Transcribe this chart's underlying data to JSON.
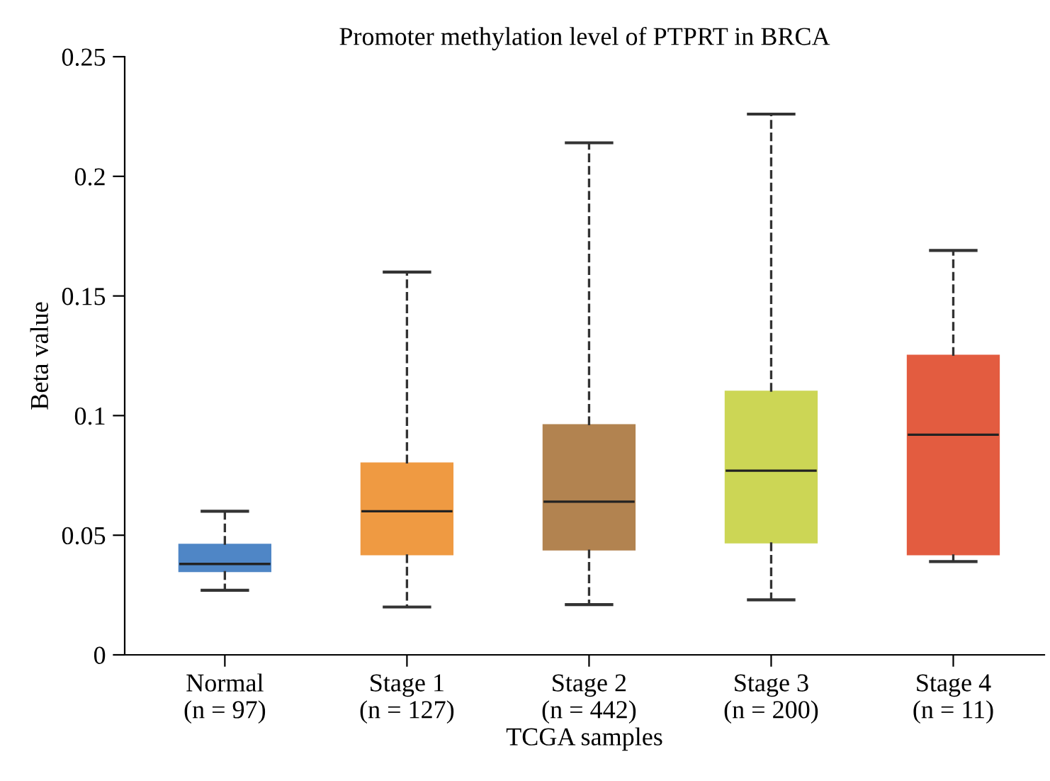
{
  "chart_data": {
    "type": "box",
    "title": "Promoter methylation level of PTPRT in BRCA",
    "xlabel": "TCGA samples",
    "ylabel": "Beta value",
    "categories": [
      "Normal\n(n = 97)",
      "Stage 1\n(n = 127)",
      "Stage 2\n(n = 442)",
      "Stage 3\n(n = 200)",
      "Stage 4\n(n = 11)"
    ],
    "colors": [
      "#4f86c6",
      "#ef9a42",
      "#b28350",
      "#ccd655",
      "#e35c40"
    ],
    "boxes": [
      {
        "low": 0.027,
        "q1": 0.035,
        "median": 0.038,
        "q3": 0.046,
        "high": 0.06
      },
      {
        "low": 0.02,
        "q1": 0.042,
        "median": 0.06,
        "q3": 0.08,
        "high": 0.16
      },
      {
        "low": 0.021,
        "q1": 0.044,
        "median": 0.064,
        "q3": 0.096,
        "high": 0.214
      },
      {
        "low": 0.023,
        "q1": 0.047,
        "median": 0.077,
        "q3": 0.11,
        "high": 0.226
      },
      {
        "low": 0.039,
        "q1": 0.042,
        "median": 0.092,
        "q3": 0.125,
        "high": 0.169
      }
    ],
    "ylim": [
      0,
      0.25
    ],
    "yticks": [
      0,
      0.05,
      0.1,
      0.15,
      0.2,
      0.25
    ],
    "grid": false,
    "line_style": "dashed"
  }
}
